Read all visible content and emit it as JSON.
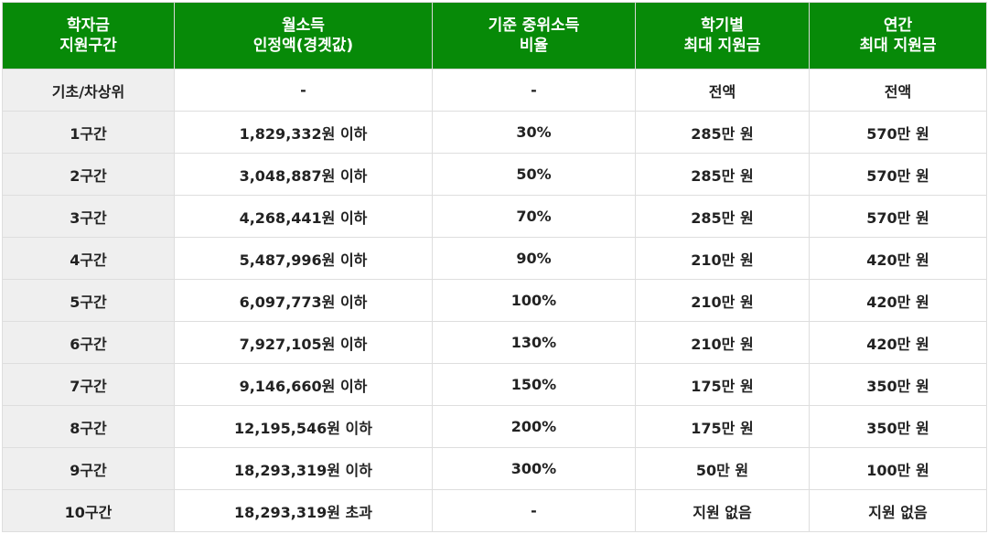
{
  "headers": [
    [
      "학자금",
      "지원구간"
    ],
    [
      "월소득",
      "인정액(경곗값)"
    ],
    [
      "기준 중위소득",
      "비율"
    ],
    [
      "학기별",
      "최대 지원금"
    ],
    [
      "연간",
      "최대 지원금"
    ]
  ],
  "rows": [
    [
      "기초/차상위",
      "-",
      "-",
      "전액",
      "전액"
    ],
    [
      "1구간",
      "1,829,332원 이하",
      "30%",
      "285만 원",
      "570만 원"
    ],
    [
      "2구간",
      "3,048,887원 이하",
      "50%",
      "285만 원",
      "570만 원"
    ],
    [
      "3구간",
      "4,268,441원 이하",
      "70%",
      "285만 원",
      "570만 원"
    ],
    [
      "4구간",
      "5,487,996원 이하",
      "90%",
      "210만 원",
      "420만 원"
    ],
    [
      "5구간",
      "6,097,773원 이하",
      "100%",
      "210만 원",
      "420만 원"
    ],
    [
      "6구간",
      "7,927,105원 이하",
      "130%",
      "210만 원",
      "420만 원"
    ],
    [
      "7구간",
      "9,146,660원 이하",
      "150%",
      "175만 원",
      "350만 원"
    ],
    [
      "8구간",
      "12,195,546원 이하",
      "200%",
      "175만 원",
      "350만 원"
    ],
    [
      "9구간",
      "18,293,319원 이하",
      "300%",
      "50만 원",
      "100만 원"
    ],
    [
      "10구간",
      "18,293,319원 초과",
      "-",
      "지원 없음",
      "지원 없음"
    ]
  ],
  "colors": {
    "header_bg": "#078a08",
    "first_col_bg": "#efefef"
  }
}
